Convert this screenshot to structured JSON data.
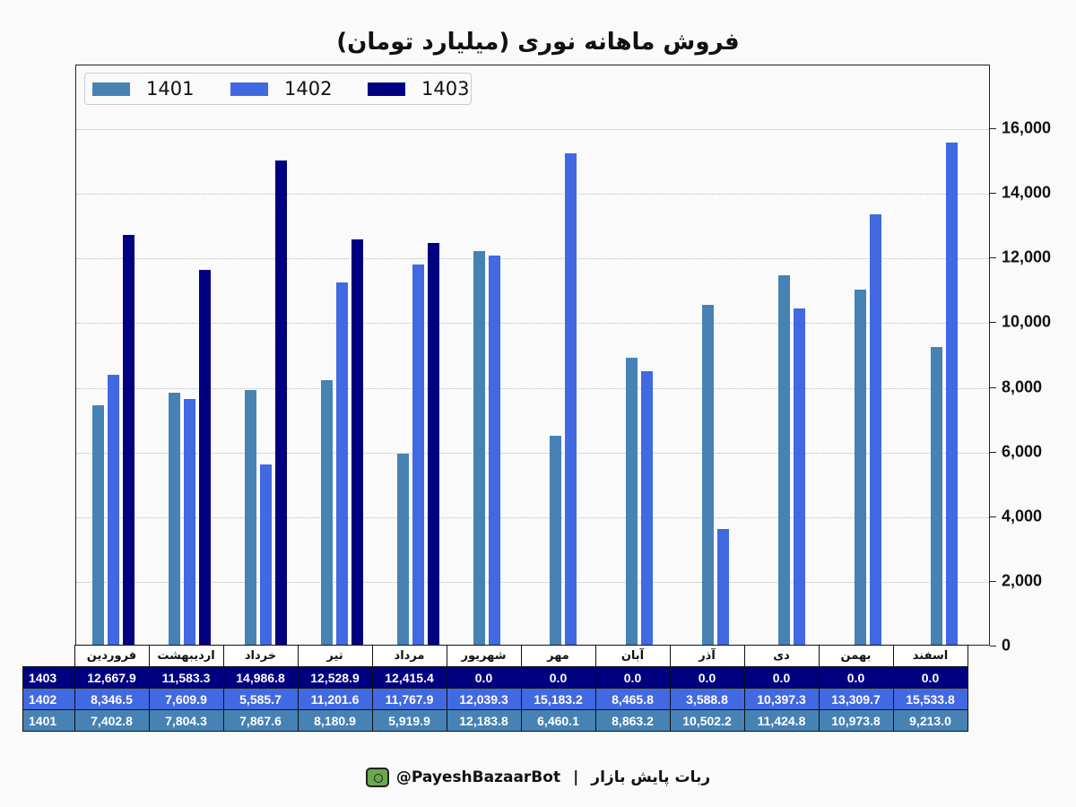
{
  "chart_data": {
    "type": "bar",
    "title": "فروش ماهانه نوری (میلیارد تومان)",
    "xlabel": "",
    "ylabel": "",
    "ylim": [
      0,
      18000
    ],
    "yticks": [
      0,
      2000,
      4000,
      6000,
      8000,
      10000,
      12000,
      14000,
      16000
    ],
    "ytick_labels": [
      "0",
      "2,000",
      "4,000",
      "6,000",
      "8,000",
      "10,000",
      "12,000",
      "14,000",
      "16,000"
    ],
    "grid": true,
    "legend_position": "upper left",
    "categories": [
      "فروردین",
      "اردیبهشت",
      "خرداد",
      "تیر",
      "مرداد",
      "شهریور",
      "مهر",
      "آبان",
      "آذر",
      "دی",
      "بهمن",
      "اسفند"
    ],
    "series": [
      {
        "name": "1401",
        "color": "#4682b4",
        "values": [
          7402.8,
          7804.3,
          7867.6,
          8180.9,
          5919.9,
          12183.8,
          6460.1,
          8863.2,
          10502.2,
          11424.8,
          10973.8,
          9213.0
        ]
      },
      {
        "name": "1402",
        "color": "#4169e1",
        "values": [
          8346.5,
          7609.9,
          5585.7,
          11201.6,
          11767.9,
          12039.3,
          15183.2,
          8465.8,
          3588.8,
          10397.3,
          13309.7,
          15533.8
        ]
      },
      {
        "name": "1403",
        "color": "#000080",
        "values": [
          12667.9,
          11583.3,
          14986.8,
          12528.9,
          12415.4,
          0.0,
          0.0,
          0.0,
          0.0,
          0.0,
          0.0,
          0.0
        ]
      }
    ]
  },
  "header": {
    "title": "فروش ماهانه نوری (میلیارد تومان)"
  },
  "legend": [
    {
      "label": "1401",
      "color": "#4682b4"
    },
    {
      "label": "1402",
      "color": "#4169e1"
    },
    {
      "label": "1403",
      "color": "#000080"
    }
  ],
  "table": {
    "months": [
      "فروردین",
      "اردیبهشت",
      "خرداد",
      "تیر",
      "مرداد",
      "شهریور",
      "مهر",
      "آبان",
      "آذر",
      "دی",
      "بهمن",
      "اسفند"
    ],
    "rows": [
      {
        "label": "1403",
        "color": "#000080",
        "values": [
          "12,667.9",
          "11,583.3",
          "14,986.8",
          "12,528.9",
          "12,415.4",
          "0.0",
          "0.0",
          "0.0",
          "0.0",
          "0.0",
          "0.0",
          "0.0"
        ]
      },
      {
        "label": "1402",
        "color": "#4169e1",
        "values": [
          "8,346.5",
          "7,609.9",
          "5,585.7",
          "11,201.6",
          "11,767.9",
          "12,039.3",
          "15,183.2",
          "8,465.8",
          "3,588.8",
          "10,397.3",
          "13,309.7",
          "15,533.8"
        ]
      },
      {
        "label": "1401",
        "color": "#4682b4",
        "values": [
          "7,402.8",
          "7,804.3",
          "7,867.6",
          "8,180.9",
          "5,919.9",
          "12,183.8",
          "6,460.1",
          "8,863.2",
          "10,502.2",
          "11,424.8",
          "10,973.8",
          "9,213.0"
        ]
      }
    ]
  },
  "footer": {
    "handle": "@PayeshBazaarBot",
    "separator": "|",
    "bot_name": "ربات پایش بازار",
    "icon": "bot-monitor-icon"
  }
}
